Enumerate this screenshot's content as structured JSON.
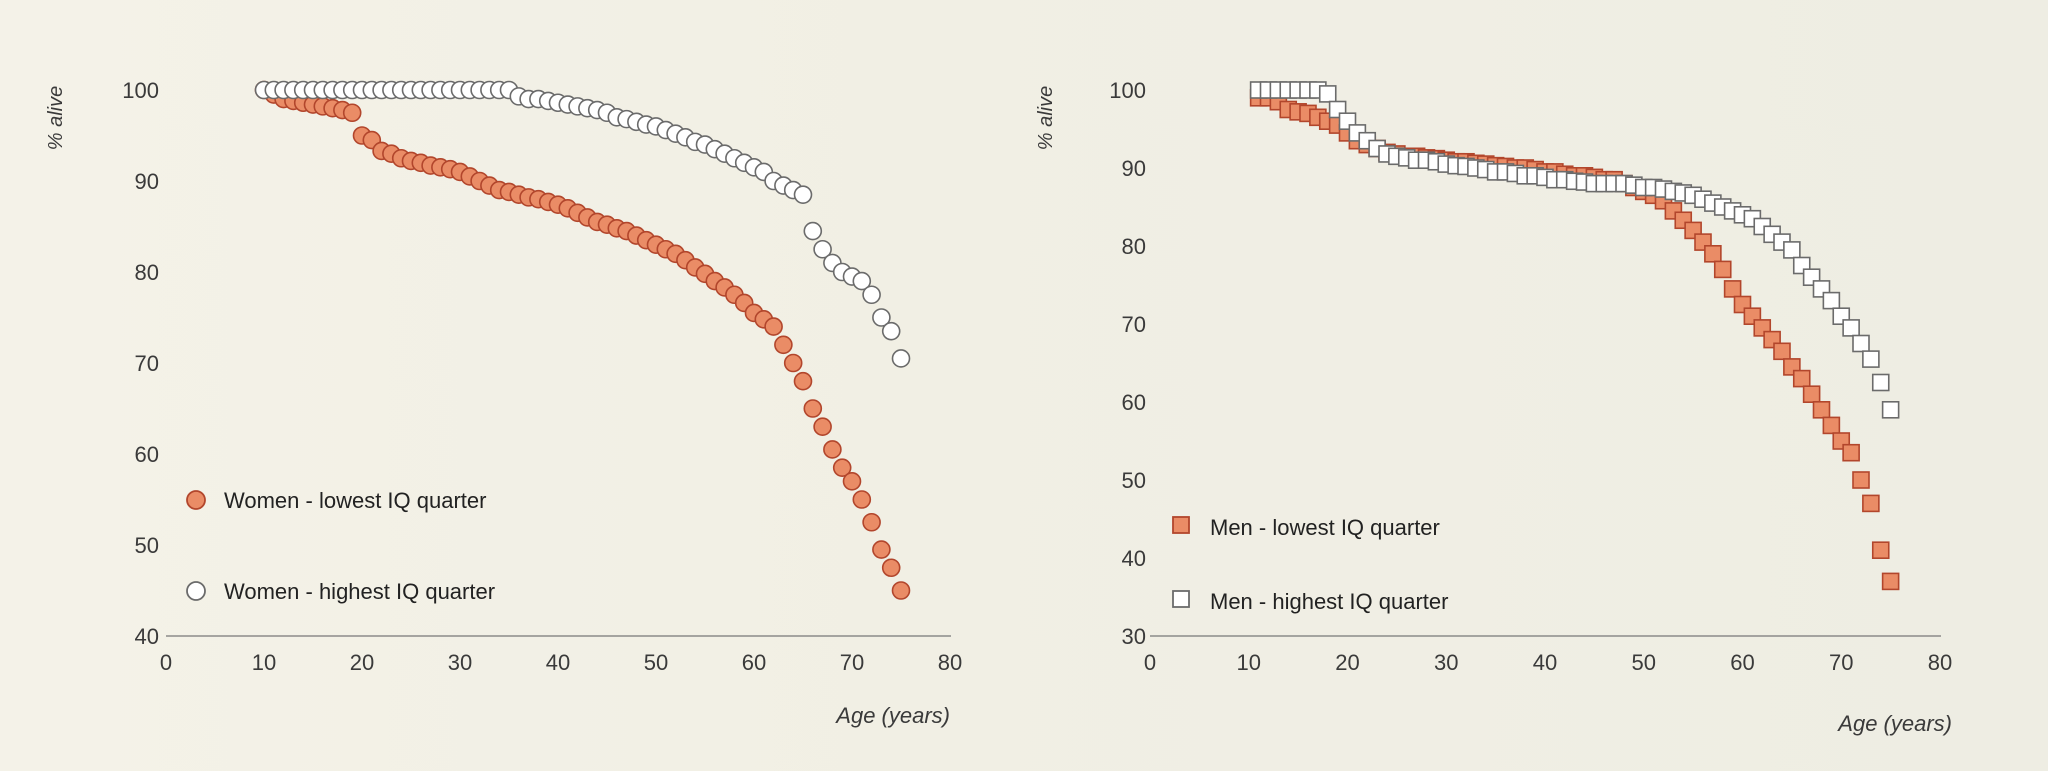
{
  "colors": {
    "lowest_fill": "#ea8c66",
    "lowest_stroke": "#b2462c",
    "highest_fill": "#ffffff",
    "highest_stroke": "#6b6b6b"
  },
  "chart_data": [
    {
      "type": "scatter",
      "marker": "circle",
      "title": "",
      "xlabel": "Age (years)",
      "ylabel": "% alive",
      "xlim": [
        0,
        80
      ],
      "ylim": [
        40,
        100
      ],
      "x_ticks": [
        "0",
        "10",
        "20",
        "30",
        "40",
        "50",
        "60",
        "70",
        "80"
      ],
      "y_ticks": [
        "40",
        "50",
        "60",
        "70",
        "80",
        "90",
        "100"
      ],
      "legend_position": "bottom-left",
      "series": [
        {
          "name": "Women - lowest IQ quarter",
          "style": "filled",
          "x": [
            10,
            11,
            12,
            13,
            14,
            15,
            16,
            17,
            18,
            19,
            20,
            21,
            22,
            23,
            24,
            25,
            26,
            27,
            28,
            29,
            30,
            31,
            32,
            33,
            34,
            35,
            36,
            37,
            38,
            39,
            40,
            41,
            42,
            43,
            44,
            45,
            46,
            47,
            48,
            49,
            50,
            51,
            52,
            53,
            54,
            55,
            56,
            57,
            58,
            59,
            60,
            61,
            62,
            63,
            64,
            65,
            66,
            67,
            68,
            69,
            70,
            71,
            72,
            73,
            74,
            75
          ],
          "y": [
            100,
            99.5,
            99,
            98.8,
            98.6,
            98.4,
            98.2,
            98,
            97.8,
            97.5,
            95,
            94.5,
            93.3,
            93,
            92.5,
            92.2,
            92,
            91.7,
            91.5,
            91.3,
            91,
            90.5,
            90,
            89.5,
            89,
            88.8,
            88.5,
            88.2,
            88,
            87.7,
            87.4,
            87,
            86.5,
            86,
            85.5,
            85.2,
            84.8,
            84.5,
            84,
            83.5,
            83,
            82.5,
            82,
            81.3,
            80.5,
            79.8,
            79,
            78.3,
            77.5,
            76.6,
            75.5,
            74.8,
            74,
            72,
            70,
            68,
            65,
            63,
            60.5,
            58.5,
            57,
            55,
            52.5,
            49.5,
            47.5,
            45
          ]
        },
        {
          "name": "Women - highest IQ quarter",
          "style": "open",
          "x": [
            10,
            11,
            12,
            13,
            14,
            15,
            16,
            17,
            18,
            19,
            20,
            21,
            22,
            23,
            24,
            25,
            26,
            27,
            28,
            29,
            30,
            31,
            32,
            33,
            34,
            35,
            36,
            37,
            38,
            39,
            40,
            41,
            42,
            43,
            44,
            45,
            46,
            47,
            48,
            49,
            50,
            51,
            52,
            53,
            54,
            55,
            56,
            57,
            58,
            59,
            60,
            61,
            62,
            63,
            64,
            65,
            66,
            67,
            68,
            69,
            70,
            71,
            72,
            73,
            74,
            75
          ],
          "y": [
            100,
            100,
            100,
            100,
            100,
            100,
            100,
            100,
            100,
            100,
            100,
            100,
            100,
            100,
            100,
            100,
            100,
            100,
            100,
            100,
            100,
            100,
            100,
            100,
            100,
            100,
            99.3,
            99,
            99,
            98.8,
            98.6,
            98.4,
            98.2,
            98,
            97.8,
            97.5,
            97,
            96.8,
            96.5,
            96.2,
            96,
            95.6,
            95.2,
            94.8,
            94.3,
            94,
            93.5,
            93,
            92.5,
            92,
            91.5,
            91,
            90,
            89.5,
            89,
            88.5,
            84.5,
            82.5,
            81,
            80,
            79.5,
            79,
            77.5,
            75,
            73.5,
            70.5
          ]
        }
      ]
    },
    {
      "type": "scatter",
      "marker": "square",
      "title": "",
      "xlabel": "Age (years)",
      "ylabel": "% alive",
      "xlim": [
        0,
        80
      ],
      "ylim": [
        30,
        100
      ],
      "x_ticks": [
        "0",
        "10",
        "20",
        "30",
        "40",
        "50",
        "60",
        "70",
        "80"
      ],
      "y_ticks": [
        "30",
        "40",
        "50",
        "60",
        "70",
        "80",
        "90",
        "100"
      ],
      "legend_position": "bottom-left",
      "series": [
        {
          "name": "Men - lowest IQ quarter",
          "style": "filled",
          "x": [
            11,
            12,
            13,
            14,
            15,
            16,
            17,
            18,
            19,
            20,
            21,
            22,
            23,
            24,
            25,
            26,
            27,
            28,
            29,
            30,
            31,
            32,
            33,
            34,
            35,
            36,
            37,
            38,
            39,
            40,
            41,
            42,
            43,
            44,
            45,
            46,
            47,
            48,
            49,
            50,
            51,
            52,
            53,
            54,
            55,
            56,
            57,
            58,
            59,
            60,
            61,
            62,
            63,
            64,
            65,
            66,
            67,
            68,
            69,
            70,
            71,
            72,
            73,
            74,
            75
          ],
          "y": [
            99,
            99,
            98.5,
            97.5,
            97.2,
            97,
            96.5,
            96,
            95.5,
            94.5,
            93.5,
            93,
            92.5,
            92,
            91.8,
            91.5,
            91.5,
            91.3,
            91.2,
            91,
            90.8,
            90.8,
            90.6,
            90.5,
            90.3,
            90.2,
            90,
            90,
            89.8,
            89.5,
            89.5,
            89.2,
            89,
            89,
            88.8,
            88.5,
            88.5,
            88,
            87.5,
            87,
            86.5,
            85.8,
            84.5,
            83.3,
            82,
            80.5,
            79,
            77,
            74.5,
            72.5,
            71,
            69.5,
            68,
            66.5,
            64.5,
            63,
            61,
            59,
            57,
            55,
            53.5,
            50,
            47,
            41,
            37
          ]
        },
        {
          "name": "Men - highest IQ quarter",
          "style": "open",
          "x": [
            11,
            12,
            13,
            14,
            15,
            16,
            17,
            18,
            19,
            20,
            21,
            22,
            23,
            24,
            25,
            26,
            27,
            28,
            29,
            30,
            31,
            32,
            33,
            34,
            35,
            36,
            37,
            38,
            39,
            40,
            41,
            42,
            43,
            44,
            45,
            46,
            47,
            48,
            49,
            50,
            51,
            52,
            53,
            54,
            55,
            56,
            57,
            58,
            59,
            60,
            61,
            62,
            63,
            64,
            65,
            66,
            67,
            68,
            69,
            70,
            71,
            72,
            73,
            74,
            75
          ],
          "y": [
            100,
            100,
            100,
            100,
            100,
            100,
            100,
            99.5,
            97.5,
            96,
            94.5,
            93.5,
            92.5,
            91.8,
            91.5,
            91.3,
            91,
            91,
            90.8,
            90.5,
            90.3,
            90.2,
            90,
            89.8,
            89.5,
            89.5,
            89.3,
            89,
            89,
            88.8,
            88.5,
            88.5,
            88.3,
            88.2,
            88,
            88,
            88,
            88,
            87.8,
            87.5,
            87.5,
            87.3,
            87,
            86.8,
            86.5,
            86,
            85.5,
            85,
            84.5,
            84,
            83.5,
            82.5,
            81.5,
            80.5,
            79.5,
            77.5,
            76,
            74.5,
            73,
            71,
            69.5,
            67.5,
            65.5,
            62.5,
            59
          ]
        }
      ]
    }
  ]
}
